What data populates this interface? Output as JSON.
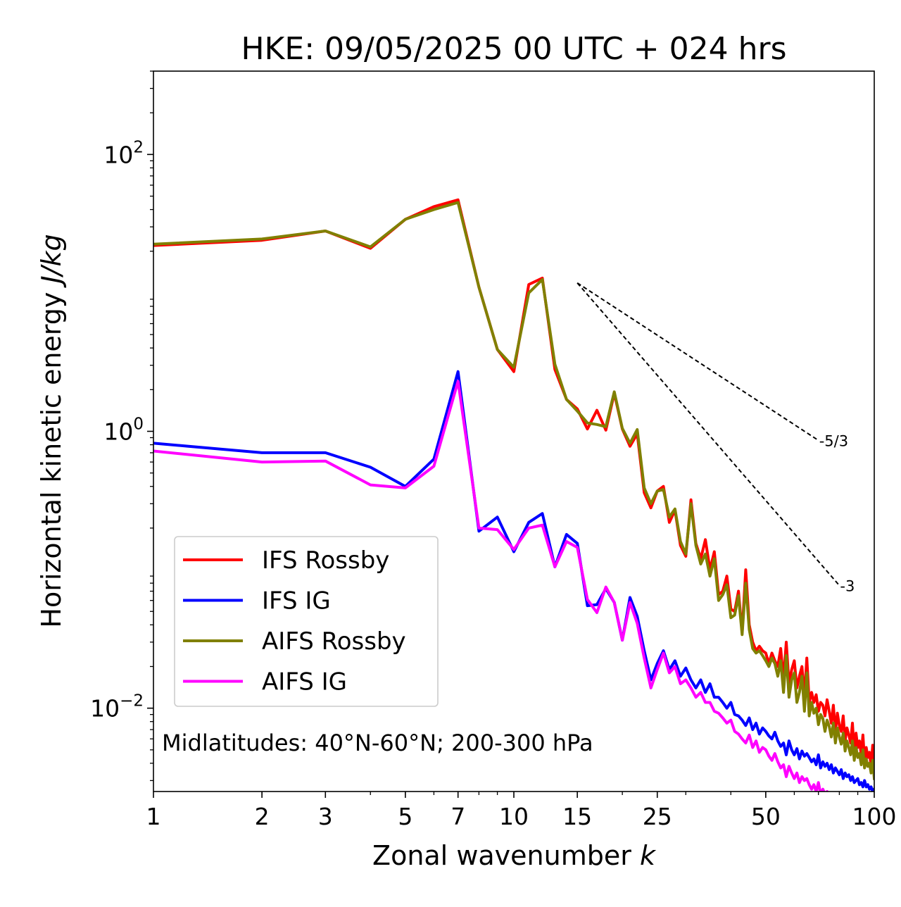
{
  "chart_data": {
    "type": "line",
    "title": "HKE: 09/05/2025 00 UTC + 024 hrs",
    "xlabel": "Zonal wavenumber",
    "xlabel_var": "k",
    "ylabel": "Horizontal kinetic energy",
    "ylabel_unit": "J/kg",
    "xscale": "log",
    "yscale": "log",
    "xlim": [
      1,
      100
    ],
    "ylim": [
      0.0025,
      400
    ],
    "x_ticks": [
      1,
      2,
      3,
      5,
      7,
      10,
      15,
      25,
      50,
      100
    ],
    "x_tick_labels": [
      "1",
      "2",
      "3",
      "5",
      "7",
      "10",
      "15",
      "25",
      "50",
      "100"
    ],
    "y_ticks": [
      {
        "value": 100,
        "base": "10",
        "exp": "2"
      },
      {
        "value": 1,
        "base": "10",
        "exp": "0"
      },
      {
        "value": 0.01,
        "base": "10",
        "exp": "−2"
      }
    ],
    "grid": false,
    "legend_position": "lower-left",
    "annotation": "Midlatitudes: 40°N-60°N; 200-300 hPa",
    "reference_lines": [
      {
        "label": "-5/3",
        "x": [
          15,
          70
        ],
        "y": [
          11.8,
          0.86
        ]
      },
      {
        "label": "-3",
        "x": [
          15,
          80
        ],
        "y": [
          11.8,
          0.077
        ]
      }
    ],
    "series": [
      {
        "name": "IFS Rossby",
        "color": "#ff0000",
        "x": [
          1,
          2,
          3,
          4,
          5,
          6,
          7,
          8,
          9,
          10,
          11,
          12,
          13,
          14,
          15,
          16,
          17,
          18,
          19,
          20,
          21,
          22,
          23,
          24,
          25,
          26,
          27,
          28,
          29,
          30,
          31,
          32,
          33,
          34,
          35,
          36,
          37,
          38,
          39,
          40,
          41,
          42,
          43,
          44,
          45,
          46,
          47,
          48,
          49,
          50,
          51,
          52,
          53,
          54,
          55,
          56,
          57,
          58,
          59,
          60,
          61,
          62,
          63,
          64,
          65,
          66,
          67,
          68,
          69,
          70,
          71,
          72,
          73,
          74,
          75,
          76,
          77,
          78,
          79,
          80,
          81,
          82,
          83,
          84,
          85,
          86,
          87,
          88,
          89,
          90,
          91,
          92,
          93,
          94,
          95,
          96,
          97,
          98,
          99,
          100
        ],
        "y": [
          22,
          24,
          28,
          21,
          34,
          42,
          47,
          11,
          3.9,
          2.7,
          11.5,
          12.8,
          2.8,
          1.7,
          1.45,
          1.04,
          1.42,
          1.02,
          1.88,
          1.04,
          0.78,
          0.96,
          0.36,
          0.28,
          0.37,
          0.4,
          0.22,
          0.27,
          0.15,
          0.125,
          0.32,
          0.155,
          0.12,
          0.165,
          0.1,
          0.135,
          0.066,
          0.07,
          0.09,
          0.052,
          0.05,
          0.07,
          0.035,
          0.1,
          0.04,
          0.03,
          0.026,
          0.028,
          0.026,
          0.025,
          0.021,
          0.025,
          0.022,
          0.02,
          0.027,
          0.016,
          0.03,
          0.015,
          0.019,
          0.022,
          0.014,
          0.017,
          0.02,
          0.012,
          0.023,
          0.011,
          0.013,
          0.011,
          0.0125,
          0.0095,
          0.011,
          0.0105,
          0.0088,
          0.0115,
          0.0095,
          0.0078,
          0.0105,
          0.0068,
          0.0092,
          0.0075,
          0.0068,
          0.0088,
          0.0058,
          0.0072,
          0.0064,
          0.0056,
          0.0078,
          0.0048,
          0.0066,
          0.0052,
          0.0058,
          0.0046,
          0.0064,
          0.0042,
          0.0052,
          0.0044,
          0.0048,
          0.0038,
          0.0054,
          0.0036
        ]
      },
      {
        "name": "IFS IG",
        "color": "#0000ff",
        "x": [
          1,
          2,
          3,
          4,
          5,
          6,
          7,
          8,
          9,
          10,
          11,
          12,
          13,
          14,
          15,
          16,
          17,
          18,
          19,
          20,
          21,
          22,
          23,
          24,
          25,
          26,
          27,
          28,
          29,
          30,
          31,
          32,
          33,
          34,
          35,
          36,
          37,
          38,
          39,
          40,
          41,
          42,
          43,
          44,
          45,
          46,
          47,
          48,
          49,
          50,
          51,
          52,
          53,
          54,
          55,
          56,
          57,
          58,
          59,
          60,
          61,
          62,
          63,
          64,
          65,
          66,
          67,
          68,
          69,
          70,
          71,
          72,
          73,
          74,
          75,
          76,
          77,
          78,
          79,
          80,
          81,
          82,
          83,
          84,
          85,
          86,
          87,
          88,
          89,
          90,
          91,
          92,
          93,
          94,
          95,
          96,
          97,
          98,
          99,
          100
        ],
        "y": [
          0.82,
          0.7,
          0.7,
          0.55,
          0.4,
          0.63,
          2.7,
          0.19,
          0.24,
          0.135,
          0.22,
          0.255,
          0.105,
          0.18,
          0.155,
          0.055,
          0.056,
          0.073,
          0.058,
          0.031,
          0.063,
          0.046,
          0.026,
          0.016,
          0.021,
          0.026,
          0.019,
          0.022,
          0.017,
          0.0195,
          0.016,
          0.014,
          0.016,
          0.013,
          0.015,
          0.012,
          0.012,
          0.011,
          0.01,
          0.011,
          0.009,
          0.0088,
          0.0082,
          0.0075,
          0.0085,
          0.007,
          0.0078,
          0.0065,
          0.0072,
          0.0068,
          0.0063,
          0.006,
          0.0067,
          0.0058,
          0.0053,
          0.0056,
          0.0046,
          0.0058,
          0.005,
          0.0046,
          0.0051,
          0.0043,
          0.0049,
          0.0045,
          0.0047,
          0.0044,
          0.0041,
          0.0043,
          0.0039,
          0.0046,
          0.0037,
          0.0041,
          0.0038,
          0.004,
          0.0036,
          0.0039,
          0.0034,
          0.0037,
          0.0035,
          0.0033,
          0.0036,
          0.0031,
          0.0034,
          0.0032,
          0.0033,
          0.003,
          0.0032,
          0.0029,
          0.003,
          0.0031,
          0.0028,
          0.0029,
          0.0027,
          0.003,
          0.0027,
          0.0028,
          0.0026,
          0.0027,
          0.0025,
          0.0026
        ]
      },
      {
        "name": "AIFS Rossby",
        "color": "#808000",
        "x": [
          1,
          2,
          3,
          4,
          5,
          6,
          7,
          8,
          9,
          10,
          11,
          12,
          13,
          14,
          15,
          16,
          17,
          18,
          19,
          20,
          21,
          22,
          23,
          24,
          25,
          26,
          27,
          28,
          29,
          30,
          31,
          32,
          33,
          34,
          35,
          36,
          37,
          38,
          39,
          40,
          41,
          42,
          43,
          44,
          45,
          46,
          47,
          48,
          49,
          50,
          51,
          52,
          53,
          54,
          55,
          56,
          57,
          58,
          59,
          60,
          61,
          62,
          63,
          64,
          65,
          66,
          67,
          68,
          69,
          70,
          71,
          72,
          73,
          74,
          75,
          76,
          77,
          78,
          79,
          80,
          81,
          82,
          83,
          84,
          85,
          86,
          87,
          88,
          89,
          90,
          91,
          92,
          93,
          94,
          95,
          96,
          97,
          98,
          99,
          100
        ],
        "y": [
          22.5,
          24.5,
          28,
          21.5,
          34,
          40,
          45,
          11,
          3.9,
          2.9,
          10,
          12.5,
          3.05,
          1.7,
          1.4,
          1.15,
          1.12,
          1.08,
          1.93,
          1.05,
          0.82,
          1.03,
          0.39,
          0.3,
          0.37,
          0.38,
          0.24,
          0.275,
          0.16,
          0.13,
          0.3,
          0.15,
          0.11,
          0.13,
          0.09,
          0.12,
          0.06,
          0.066,
          0.078,
          0.045,
          0.047,
          0.065,
          0.034,
          0.08,
          0.037,
          0.027,
          0.025,
          0.026,
          0.024,
          0.022,
          0.02,
          0.023,
          0.021,
          0.017,
          0.022,
          0.013,
          0.024,
          0.012,
          0.016,
          0.018,
          0.011,
          0.013,
          0.017,
          0.0095,
          0.018,
          0.0088,
          0.011,
          0.0092,
          0.01,
          0.0076,
          0.009,
          0.0084,
          0.0068,
          0.0082,
          0.0074,
          0.0062,
          0.0078,
          0.0056,
          0.0072,
          0.0062,
          0.0055,
          0.0066,
          0.0049,
          0.0058,
          0.0052,
          0.0046,
          0.0058,
          0.0042,
          0.0052,
          0.0044,
          0.0047,
          0.0039,
          0.005,
          0.0037,
          0.0043,
          0.0038,
          0.004,
          0.0034,
          0.0042,
          0.0031
        ]
      },
      {
        "name": "AIFS IG",
        "color": "#ff00ff",
        "x": [
          1,
          2,
          3,
          4,
          5,
          6,
          7,
          8,
          9,
          10,
          11,
          12,
          13,
          14,
          15,
          16,
          17,
          18,
          19,
          20,
          21,
          22,
          23,
          24,
          25,
          26,
          27,
          28,
          29,
          30,
          31,
          32,
          33,
          34,
          35,
          36,
          37,
          38,
          39,
          40,
          41,
          42,
          43,
          44,
          45,
          46,
          47,
          48,
          49,
          50,
          51,
          52,
          53,
          54,
          55,
          56,
          57,
          58,
          59,
          60,
          61,
          62,
          63,
          64,
          65,
          66,
          67,
          68,
          69,
          70,
          71,
          72,
          73,
          74,
          75,
          76,
          77,
          78,
          79,
          80,
          81,
          82,
          83,
          84,
          85,
          86,
          87,
          88,
          89,
          90,
          91,
          92,
          93,
          94,
          95,
          96,
          97,
          98,
          99,
          100
        ],
        "y": [
          0.72,
          0.6,
          0.61,
          0.41,
          0.39,
          0.56,
          2.3,
          0.2,
          0.195,
          0.14,
          0.2,
          0.21,
          0.105,
          0.16,
          0.145,
          0.061,
          0.049,
          0.075,
          0.058,
          0.031,
          0.058,
          0.041,
          0.023,
          0.014,
          0.019,
          0.025,
          0.018,
          0.02,
          0.015,
          0.016,
          0.014,
          0.012,
          0.013,
          0.011,
          0.011,
          0.0095,
          0.0092,
          0.0085,
          0.0078,
          0.0082,
          0.0068,
          0.0065,
          0.006,
          0.0056,
          0.0064,
          0.0052,
          0.0058,
          0.0048,
          0.0052,
          0.005,
          0.0045,
          0.0042,
          0.0047,
          0.0041,
          0.0037,
          0.0039,
          0.0032,
          0.0038,
          0.0034,
          0.0031,
          0.0034,
          0.0029,
          0.0032,
          0.003,
          0.0031,
          0.0028,
          0.0026,
          0.0028,
          0.0025,
          0.0029,
          0.0024,
          0.0026,
          0.0024,
          0.0025,
          0.0023,
          0.0024,
          0.0022,
          0.0023,
          0.0022,
          0.0021,
          0.0022,
          0.002,
          0.0021,
          0.002,
          0.002,
          0.0019,
          0.002,
          0.0018,
          0.0019,
          0.0019,
          0.0018,
          0.0018,
          0.0017,
          0.0018,
          0.0017,
          0.0017,
          0.0016,
          0.0017,
          0.0016,
          0.0016
        ]
      }
    ]
  }
}
